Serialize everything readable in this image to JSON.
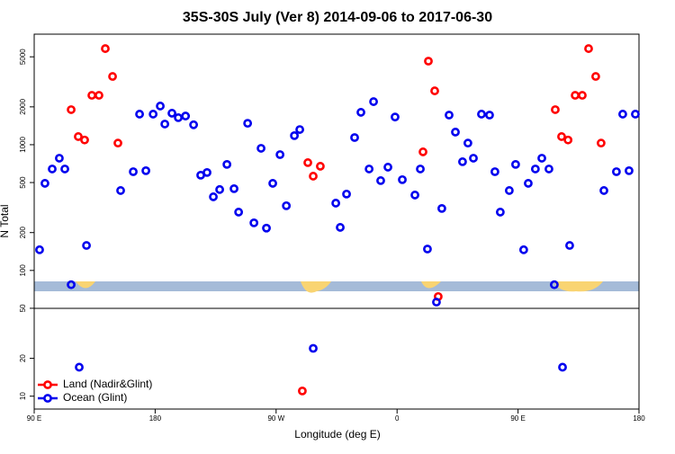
{
  "chart_data": {
    "type": "scatter",
    "title": "35S-30S July (Ver 8)   2014-09-06 to 2017-06-30",
    "x_label": "Longitude (deg E)",
    "y_label": "N Total",
    "xlim": [
      90,
      540
    ],
    "xticks": [
      {
        "value": 90,
        "label": "90 E"
      },
      180,
      {
        "value": 270,
        "label": "90 W"
      },
      {
        "value": 360,
        "label": "0"
      },
      {
        "value": 450,
        "label": "90 E"
      },
      {
        "value": 540,
        "label": "180"
      }
    ],
    "ylim": [
      7.9,
      7570
    ],
    "y_scale": "log",
    "yticks": [
      10,
      20,
      50,
      100,
      200,
      500,
      1000,
      2000,
      5000
    ],
    "legend": "bottom-left",
    "series": [
      {
        "name": "Land (Nadir&Glint)",
        "color": "#ff0000",
        "x": [
          117.5,
          122.8,
          127.5,
          132.9,
          138.2,
          142.9,
          148.3,
          152.3,
          289.5,
          293.6,
          297.6,
          302.9,
          379.3,
          383.3,
          388.0,
          390.6,
          477.7,
          482.4,
          487.2,
          492.5,
          497.8,
          502.5,
          507.8,
          511.8
        ],
        "values": [
          1900,
          1160,
          1090,
          2470,
          2470,
          5810,
          3490,
          1030,
          11,
          720,
          562,
          674,
          877,
          4620,
          2680,
          62,
          1900,
          1160,
          1090,
          2470,
          2470,
          5810,
          3490,
          1030
        ]
      },
      {
        "name": "Ocean (Glint)",
        "color": "#0000ee",
        "x": [
          94.0,
          98.0,
          103.4,
          108.7,
          112.8,
          117.5,
          123.5,
          128.9,
          154.3,
          163.7,
          168.4,
          173.1,
          178.5,
          183.8,
          187.2,
          192.5,
          197.2,
          202.6,
          208.6,
          213.9,
          218.6,
          223.3,
          228.0,
          233.4,
          238.7,
          242.1,
          248.8,
          253.5,
          258.8,
          262.8,
          267.5,
          272.9,
          277.6,
          283.6,
          287.6,
          297.6,
          314.4,
          317.7,
          322.4,
          328.4,
          333.1,
          339.2,
          342.5,
          347.8,
          353.2,
          358.5,
          363.9,
          373.3,
          377.3,
          382.6,
          389.3,
          393.3,
          398.7,
          403.4,
          408.7,
          412.7,
          416.8,
          422.8,
          428.8,
          432.8,
          436.8,
          443.5,
          448.2,
          454.2,
          457.6,
          462.9,
          467.7,
          473.0,
          477.0,
          483.1,
          488.4,
          513.9,
          523.2,
          527.9,
          532.6,
          537.3
        ],
        "values": [
          146,
          493,
          641,
          781,
          641,
          77,
          17,
          158,
          432,
          610,
          1750,
          621,
          1750,
          2030,
          1460,
          1780,
          1640,
          1690,
          1440,
          572,
          601,
          385,
          440,
          697,
          447,
          291,
          1480,
          239,
          936,
          217,
          493,
          834,
          327,
          1180,
          1320,
          24,
          343,
          220,
          405,
          1140,
          1810,
          641,
          2200,
          518,
          663,
          1660,
          527,
          398,
          641,
          148,
          56,
          311,
          1720,
          1260,
          732,
          1030,
          781,
          1750,
          1720,
          610,
          291,
          432,
          697,
          146,
          493,
          641,
          781,
          641,
          77,
          17,
          158,
          432,
          610,
          1750,
          621,
          1750
        ]
      }
    ]
  }
}
